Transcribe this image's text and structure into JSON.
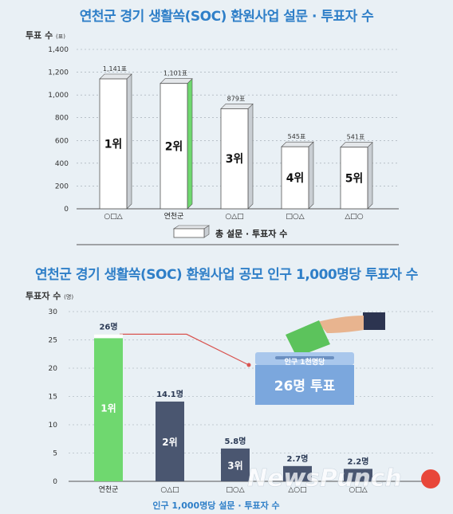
{
  "title_top": "연천군 경기 생활쏙(SOC) 환원사업 설문 · 투표자  수",
  "title_bottom": "연천군 경기 생활쏙(SOC) 환원사업 공모 인구 1,000명당 투표자 수",
  "top_unit_label": "투표 수",
  "top_unit_suffix": "(표)",
  "bottom_unit_label": "투표자 수",
  "bottom_unit_suffix": "(명)",
  "top_legend": "총 설문 · 투표자 수",
  "bottom_legend": "인구 1,000명당 설문 · 투표자 수",
  "ballot_box": {
    "caption": "인구 1천명당",
    "value": "26명 투표"
  },
  "watermark": "NewsPunch",
  "colors": {
    "title": "#2f7fc8",
    "accent_green": "#6fd86f",
    "bar_navy": "#4a5670",
    "line_red": "#d9534f",
    "ballot_blue": "#7ba7dd"
  },
  "chart_data": [
    {
      "type": "bar",
      "categories": [
        "○□△",
        "연천군",
        "○△□",
        "□○△",
        "△□○"
      ],
      "values": [
        1141,
        1101,
        879,
        545,
        541
      ],
      "value_labels": [
        "1,141표",
        "1,101표",
        "879표",
        "545표",
        "541표"
      ],
      "rank_labels": [
        "1위",
        "2위",
        "3위",
        "4위",
        "5위"
      ],
      "highlight": "연천군",
      "ylim": [
        0,
        1400
      ],
      "yticks": [
        0,
        200,
        400,
        600,
        800,
        "1,000",
        "1,200",
        "1,400"
      ],
      "ylabel": "투표 수",
      "legend": "총 설문 · 투표자 수"
    },
    {
      "type": "bar",
      "categories": [
        "연천군",
        "○△□",
        "□○△",
        "△○□",
        "○□△"
      ],
      "values": [
        26,
        14.1,
        5.8,
        2.7,
        2.2
      ],
      "value_labels": [
        "26명",
        "14.1명",
        "5.8명",
        "2.7명",
        "2.2명"
      ],
      "rank_labels": [
        "1위",
        "2위",
        "3위",
        "",
        ""
      ],
      "highlight": "연천군",
      "ylim": [
        0,
        30
      ],
      "yticks": [
        0,
        5,
        10,
        15,
        20,
        25,
        30
      ],
      "ylabel": "투표자 수",
      "legend": "인구 1,000명당 설문 · 투표자 수"
    }
  ]
}
